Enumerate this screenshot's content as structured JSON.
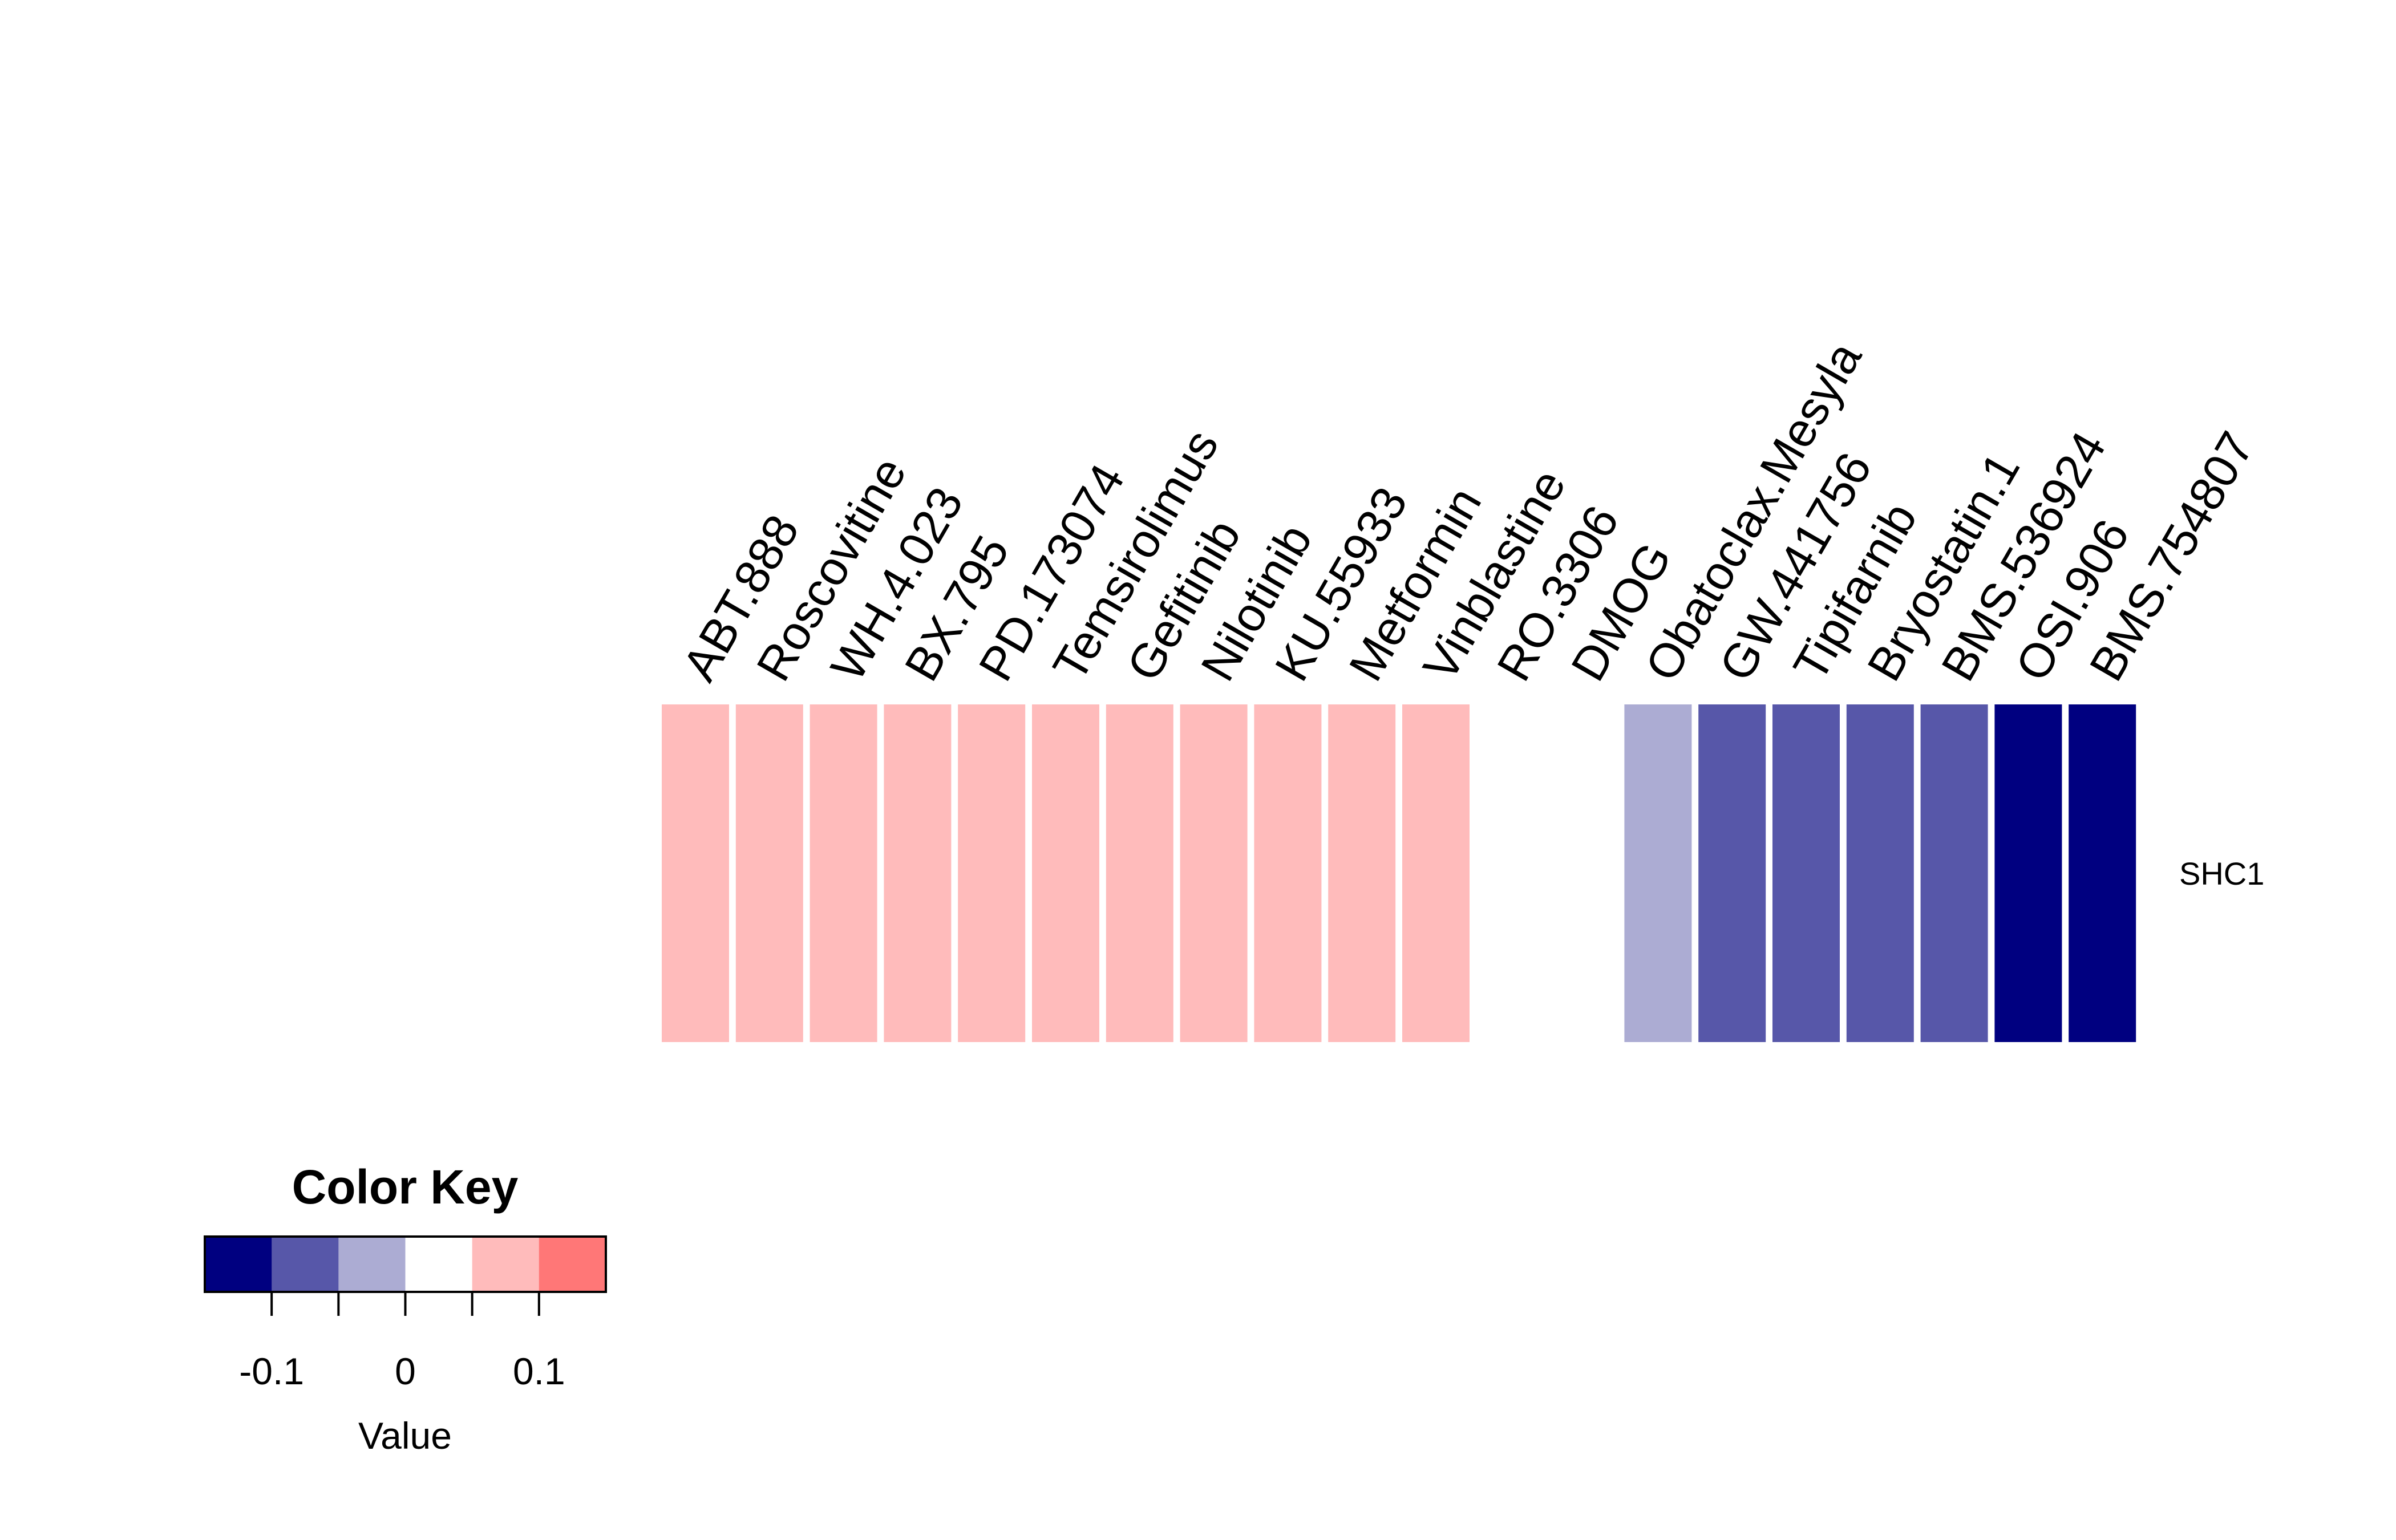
{
  "chart_data": {
    "type": "heatmap",
    "rows": [
      "SHC1"
    ],
    "columns": [
      "ABT.888",
      "Roscovitine",
      "WH.4.023",
      "BX.795",
      "PD.173074",
      "Temsirolimus",
      "Gefitinib",
      "Nilotinib",
      "KU.55933",
      "Metformin",
      "Vinblastine",
      "RO.3306",
      "DMOG",
      "Obatoclax.Mesyla",
      "GW.441756",
      "Tipifarnib",
      "Bryostatin.1",
      "BMS.536924",
      "OSI.906",
      "BMS.754807"
    ],
    "values": [
      [
        0.1,
        0.1,
        0.1,
        0.1,
        0.1,
        0.1,
        0.1,
        0.1,
        0.1,
        0.1,
        0.1,
        0.05,
        0.05,
        -0.05,
        -0.1,
        -0.1,
        -0.1,
        -0.1,
        -0.15,
        -0.15
      ]
    ],
    "color_key": {
      "title": "Color Key",
      "xlabel": "Value",
      "range": [
        -0.15,
        0.15
      ],
      "bins": [
        -0.15,
        -0.1,
        -0.05,
        0,
        0.05,
        0.1,
        0.15
      ],
      "colors": [
        "#000080",
        "#5757A9",
        "#ACACD3",
        "#FFFFFF",
        "#FFBBBB",
        "#FF7777",
        "#FF3333"
      ],
      "tick_values": [
        -0.1,
        -0.05,
        0,
        0.05,
        0.1
      ],
      "tick_labels": [
        "-0.1",
        "0",
        "0.1"
      ],
      "labeled_tick_values": [
        -0.1,
        0,
        0.1
      ]
    },
    "legend_position": "bottom-left"
  }
}
